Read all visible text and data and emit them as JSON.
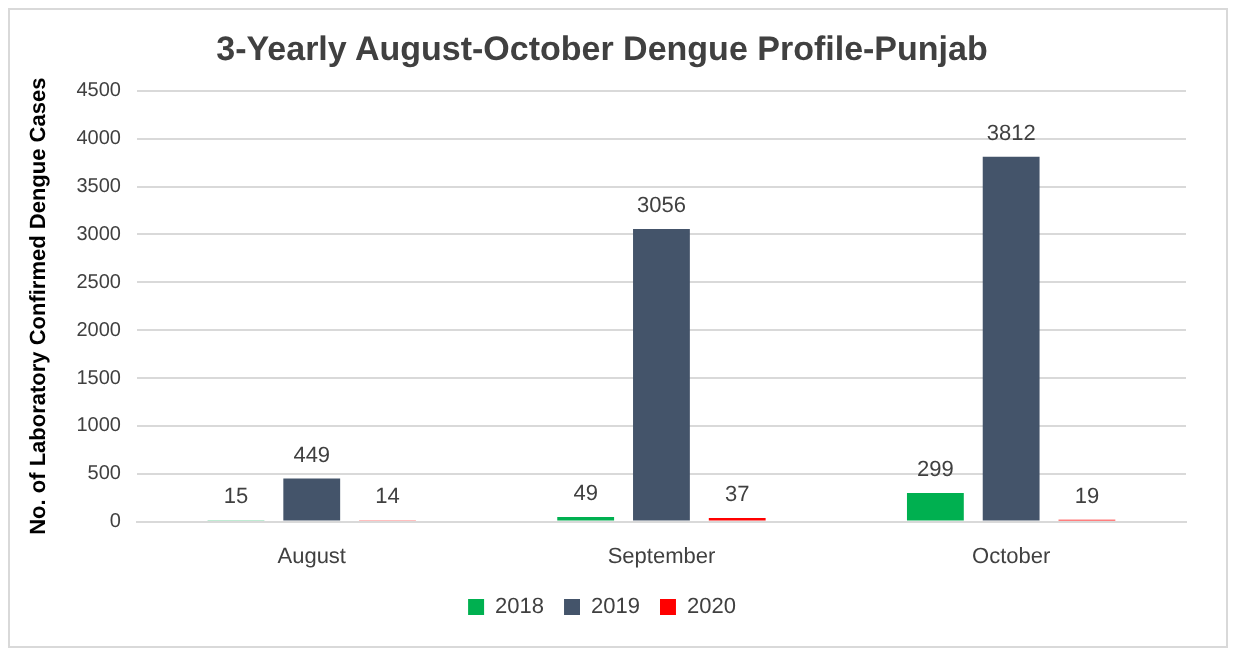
{
  "chart_data": {
    "type": "bar",
    "title": "3-Yearly August-October Dengue Profile-Punjab",
    "ylabel": "No. of Laboratory Confirmed Dengue Cases",
    "categories": [
      "August",
      "September",
      "October"
    ],
    "series": [
      {
        "name": "2018",
        "color": "#00b050",
        "values": [
          15,
          49,
          299
        ]
      },
      {
        "name": "2019",
        "color": "#44546a",
        "values": [
          449,
          3056,
          3812
        ]
      },
      {
        "name": "2020",
        "color": "#ff0000",
        "values": [
          14,
          37,
          19
        ]
      }
    ],
    "ylim": [
      0,
      4500
    ],
    "yticks": [
      0,
      500,
      1000,
      1500,
      2000,
      2500,
      3000,
      3500,
      4000,
      4500
    ],
    "grid": "y",
    "legend": "bottom",
    "data_labels": true
  }
}
